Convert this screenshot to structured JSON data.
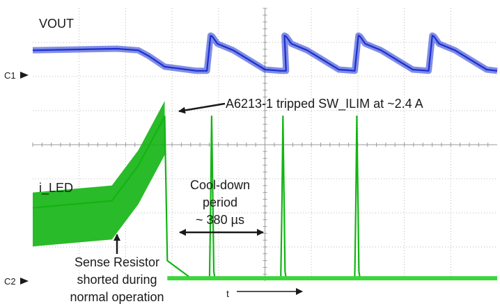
{
  "chart_data": {
    "type": "line",
    "title": "",
    "xlabel": "t",
    "ylabel": "",
    "grid": true,
    "x_unit": "µs",
    "channels": [
      {
        "marker": "C1",
        "name": "VOUT",
        "color": "#1a2fd0"
      },
      {
        "marker": "C2",
        "name": "i_LED",
        "color": "#12b412"
      }
    ],
    "series": [
      {
        "name": "VOUT",
        "color": "#1a2fd0",
        "x": [
          0,
          160,
          200,
          220,
          250,
          310,
          330,
          337,
          340,
          350,
          380,
          440,
          470,
          480,
          477,
          480,
          490,
          520,
          580,
          610,
          617,
          620,
          630,
          660,
          720,
          750,
          757,
          760,
          770,
          800,
          860,
          880
        ],
        "y": [
          0.52,
          0.56,
          0.52,
          0.38,
          0.12,
          0.02,
          0.02,
          0.88,
          0.86,
          0.68,
          0.52,
          0.05,
          0.02,
          0.02,
          0.88,
          0.86,
          0.68,
          0.52,
          0.05,
          0.02,
          0.88,
          0.86,
          0.68,
          0.52,
          0.05,
          0.02,
          0.88,
          0.86,
          0.68,
          0.52,
          0.05,
          0.02
        ],
        "notes": "Blue VOUT trace: flat high during normal operation, collapses after the trip, then periodic restart pulses"
      },
      {
        "name": "i_LED",
        "color": "#12b412",
        "x": [
          0,
          150,
          200,
          250,
          255,
          300,
          335,
          337,
          339,
          341,
          343,
          345,
          470,
          472,
          474,
          476,
          478,
          480,
          610,
          612,
          614,
          616,
          618,
          620,
          760,
          880
        ],
        "y": [
          1.0,
          1.1,
          1.6,
          2.3,
          0.25,
          0.0,
          0.0,
          1.0,
          2.3,
          1.2,
          0.1,
          0.0,
          0.0,
          1.0,
          2.3,
          1.2,
          0.1,
          0.0,
          0.0,
          1.0,
          2.3,
          1.2,
          0.1,
          0.0,
          0.0,
          0.0
        ],
        "notes": "Green i_LED trace: ramps up after the sense resistor is shorted, trips at ~2.4 A, then narrow retry spikes"
      }
    ],
    "annotations": [
      {
        "id": "trip",
        "text": "A6213-1 tripped SW_ILIM at ~2.4 A"
      },
      {
        "id": "cooldown",
        "lines": [
          "Cool-down",
          "period",
          "~ 380 µs"
        ]
      },
      {
        "id": "short",
        "lines": [
          "Sense Resistor",
          "shorted during",
          "normal operation"
        ]
      }
    ]
  }
}
